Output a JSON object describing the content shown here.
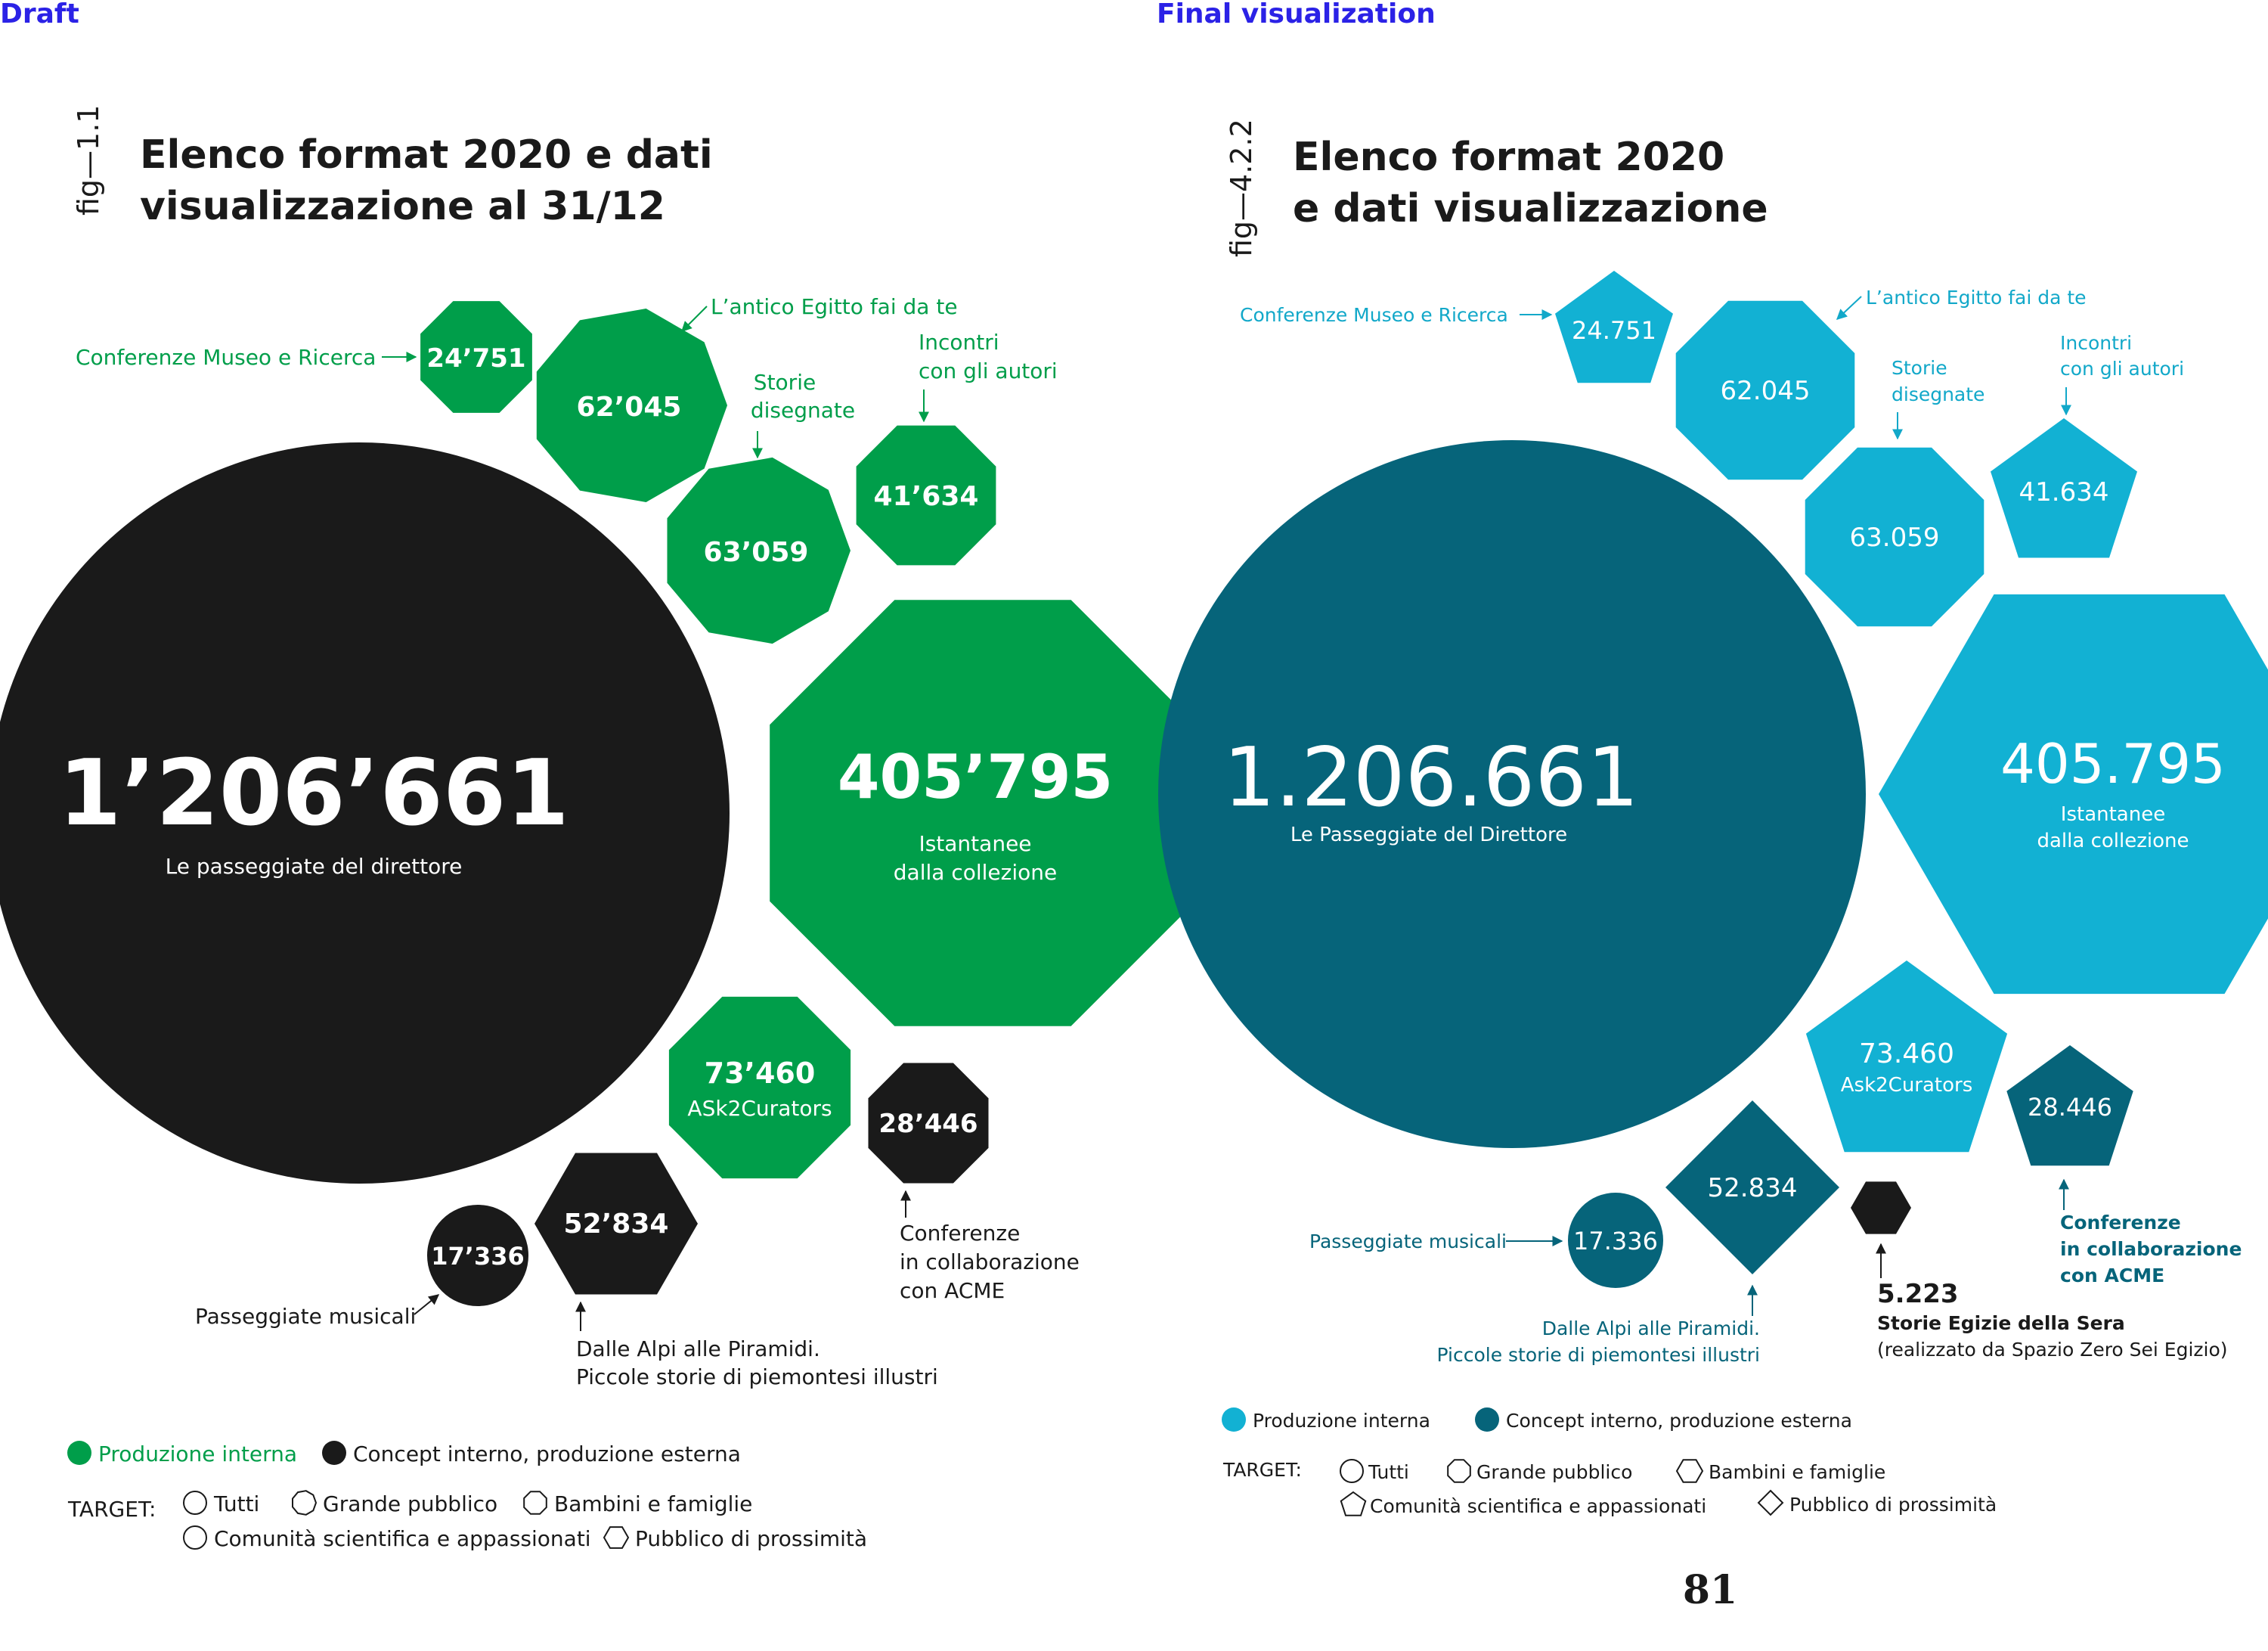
{
  "colors": {
    "draft_internal": "#009e4a",
    "draft_external": "#1a1a1a",
    "final_internal": "#12b1d3",
    "final_external": "#06647a",
    "final_extra": "#1a1a1a",
    "section_label": "#2b22e6"
  },
  "draft": {
    "section_label": "Draft",
    "fig_label": "fig—1.1",
    "title_line1": "Elenco format 2020 e dati",
    "title_line2": "visualizzazione al 31/12",
    "items": [
      {
        "value": "1’206’661",
        "label1": "Le passeggiate del direttore",
        "shape": "circle"
      },
      {
        "value": "405’795",
        "label1": "Istantanee",
        "label2": "dalla collezione",
        "shape": "octagon"
      },
      {
        "value": "73’460",
        "label1": "ASk2Curators",
        "shape": "octagon"
      },
      {
        "value": "63’059",
        "label1": "Storie",
        "label2": "disegnate",
        "shape": "nonagon"
      },
      {
        "value": "62’045",
        "label1": "L’antico Egitto fai da te",
        "shape": "nonagon"
      },
      {
        "value": "52’834",
        "label1": "Dalle Alpi alle Piramidi.",
        "label2": "Piccole storie di piemontesi illustri",
        "shape": "hexagon"
      },
      {
        "value": "41’634",
        "label1": "Incontri",
        "label2": "con gli autori",
        "shape": "octagon"
      },
      {
        "value": "28’446",
        "label1": "Conferenze",
        "label2": "in collaborazione",
        "label3": "con ACME",
        "shape": "octagon"
      },
      {
        "value": "24’751",
        "label1": "Conferenze Museo e Ricerca",
        "shape": "octagon"
      },
      {
        "value": "17’336",
        "label1": "Passeggiate musicali",
        "shape": "circle"
      }
    ],
    "legend": {
      "internal": "Produzione interna",
      "external": "Concept interno, produzione esterna",
      "target_label": "TARGET:",
      "targets": [
        "Tutti",
        "Grande pubblico",
        "Bambini e famiglie",
        "Comunità scientifica e appassionati",
        "Pubblico di prossimità"
      ]
    }
  },
  "final": {
    "section_label": "Final visualization",
    "fig_label": "fig—4.2.2",
    "title_line1": "Elenco format 2020",
    "title_line2": "e dati visualizzazione",
    "items": [
      {
        "value": "1.206.661",
        "label1": "Le Passeggiate del Direttore",
        "shape": "circle"
      },
      {
        "value": "405.795",
        "label1": "Istantanee",
        "label2": "dalla collezione",
        "shape": "hexagon"
      },
      {
        "value": "73.460",
        "label1": "Ask2Curators",
        "shape": "pentagon"
      },
      {
        "value": "63.059",
        "label1": "Storie",
        "label2": "disegnate",
        "shape": "octagon"
      },
      {
        "value": "62.045",
        "label1": "L’antico Egitto fai da te",
        "shape": "octagon"
      },
      {
        "value": "52.834",
        "label1": "Dalle Alpi alle Piramidi.",
        "label2": "Piccole storie di piemontesi illustri",
        "shape": "diamond"
      },
      {
        "value": "41.634",
        "label1": "Incontri",
        "label2": "con gli autori",
        "shape": "pentagon"
      },
      {
        "value": "28.446",
        "label1": "Conferenze",
        "label2": "in collaborazione",
        "label3": "con ACME",
        "shape": "pentagon"
      },
      {
        "value": "24.751",
        "label1": "Conferenze Museo e Ricerca",
        "shape": "pentagon"
      },
      {
        "value": "17.336",
        "label1": "Passeggiate musicali",
        "shape": "circle"
      },
      {
        "value": "5.223",
        "label1": "Storie Egizie della Sera",
        "label2": "(realizzato da Spazio Zero Sei Egizio)",
        "shape": "hexagon"
      }
    ],
    "legend": {
      "internal": "Produzione interna",
      "external": "Concept interno, produzione esterna",
      "target_label": "TARGET:",
      "targets": [
        "Tutti",
        "Grande pubblico",
        "Bambini e famiglie",
        "Comunità scientifica e appassionati",
        "Pubblico di prossimità"
      ]
    },
    "page_number": "81"
  }
}
